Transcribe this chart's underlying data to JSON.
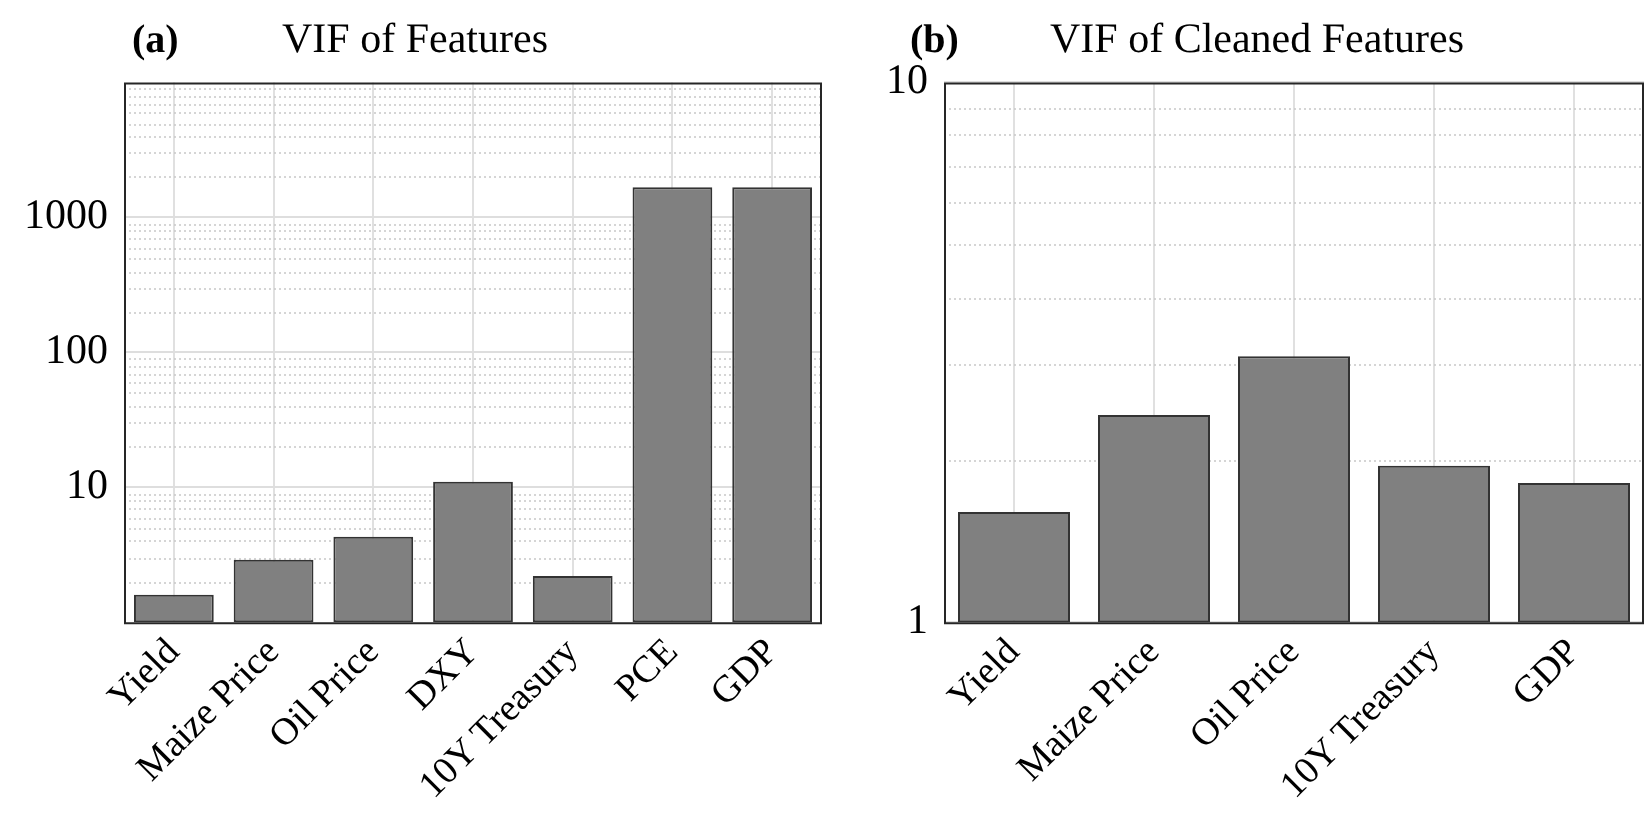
{
  "chart_data": [
    {
      "type": "bar",
      "title": "VIF of Features",
      "annotations": [
        "(a)"
      ],
      "categories": [
        "Yield",
        "Maize Price",
        "Oil Price",
        "DXY",
        "10Y Treasury",
        "PCE",
        "GDP"
      ],
      "values": [
        1.6,
        2.9,
        4.3,
        11,
        2.2,
        1670,
        1670
      ],
      "color": "#808080",
      "log": true,
      "ylim": [
        1,
        10000
      ],
      "yticks": [
        10,
        100,
        1000
      ],
      "grid": true,
      "legend": false
    },
    {
      "type": "bar",
      "title": "VIF of Cleaned Features",
      "annotations": [
        "(b)"
      ],
      "categories": [
        "Yield",
        "Maize Price",
        "Oil Price",
        "10Y Treasury",
        "GDP"
      ],
      "values": [
        1.6,
        2.42,
        3.11,
        1.95,
        1.81
      ],
      "color": "#808080",
      "log": true,
      "ylim": [
        1,
        10
      ],
      "yticks": [
        1,
        10
      ],
      "grid": true,
      "legend": false
    }
  ]
}
